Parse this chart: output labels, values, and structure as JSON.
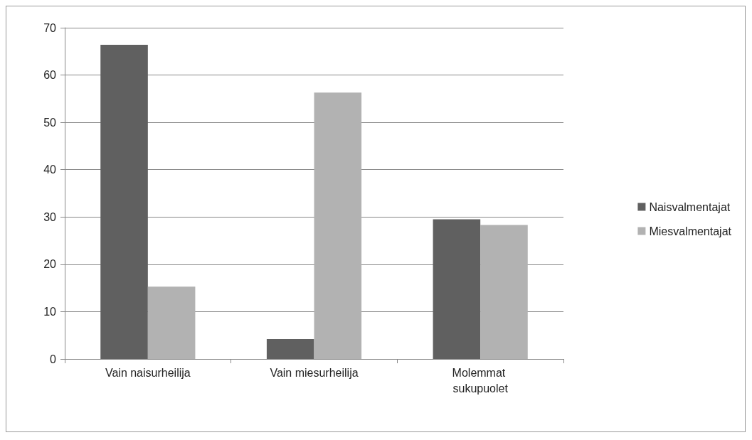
{
  "chart_data": {
    "type": "bar",
    "categories": [
      "Vain naisurheilija",
      "Vain miesurheilija",
      "Molemmat sukupuolet"
    ],
    "series": [
      {
        "name": "Naisvalmentajat",
        "color": "#606060",
        "values": [
          66.4,
          4.2,
          29.5
        ]
      },
      {
        "name": "Miesvalmentajat",
        "color": "#b2b2b2",
        "values": [
          15.3,
          56.3,
          28.3
        ]
      }
    ],
    "ylim": [
      0,
      70
    ],
    "yticks": [
      0,
      10,
      20,
      30,
      40,
      50,
      60,
      70
    ],
    "grid": "y",
    "legend": "right"
  }
}
